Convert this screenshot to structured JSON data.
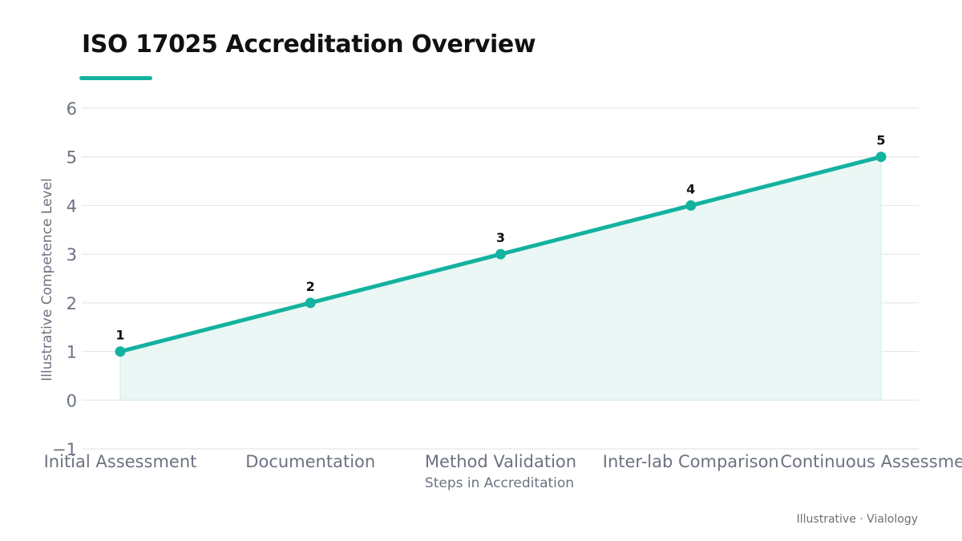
{
  "title": "ISO 17025 Accreditation Overview",
  "footer": "Illustrative · Vialology",
  "colors": {
    "accent": "#13b29f",
    "area_fill": "#eaf7f4",
    "grid": "#e6e8eb",
    "tick_text": "#6b7280",
    "point_label": "#111111"
  },
  "chart_data": {
    "type": "area",
    "title": "ISO 17025 Accreditation Overview",
    "xlabel": "Steps in Accreditation",
    "ylabel": "Illustrative Competence Level",
    "categories": [
      "Initial Assessment",
      "Documentation",
      "Method Validation",
      "Inter-lab Comparison",
      "Continuous Assessment"
    ],
    "values": [
      1,
      2,
      3,
      4,
      5
    ],
    "data_labels": [
      "1",
      "2",
      "3",
      "4",
      "5"
    ],
    "ylim": [
      -1,
      6
    ],
    "yticks": [
      -1,
      0,
      1,
      2,
      3,
      4,
      5,
      6
    ],
    "grid": true,
    "legend": "none"
  }
}
